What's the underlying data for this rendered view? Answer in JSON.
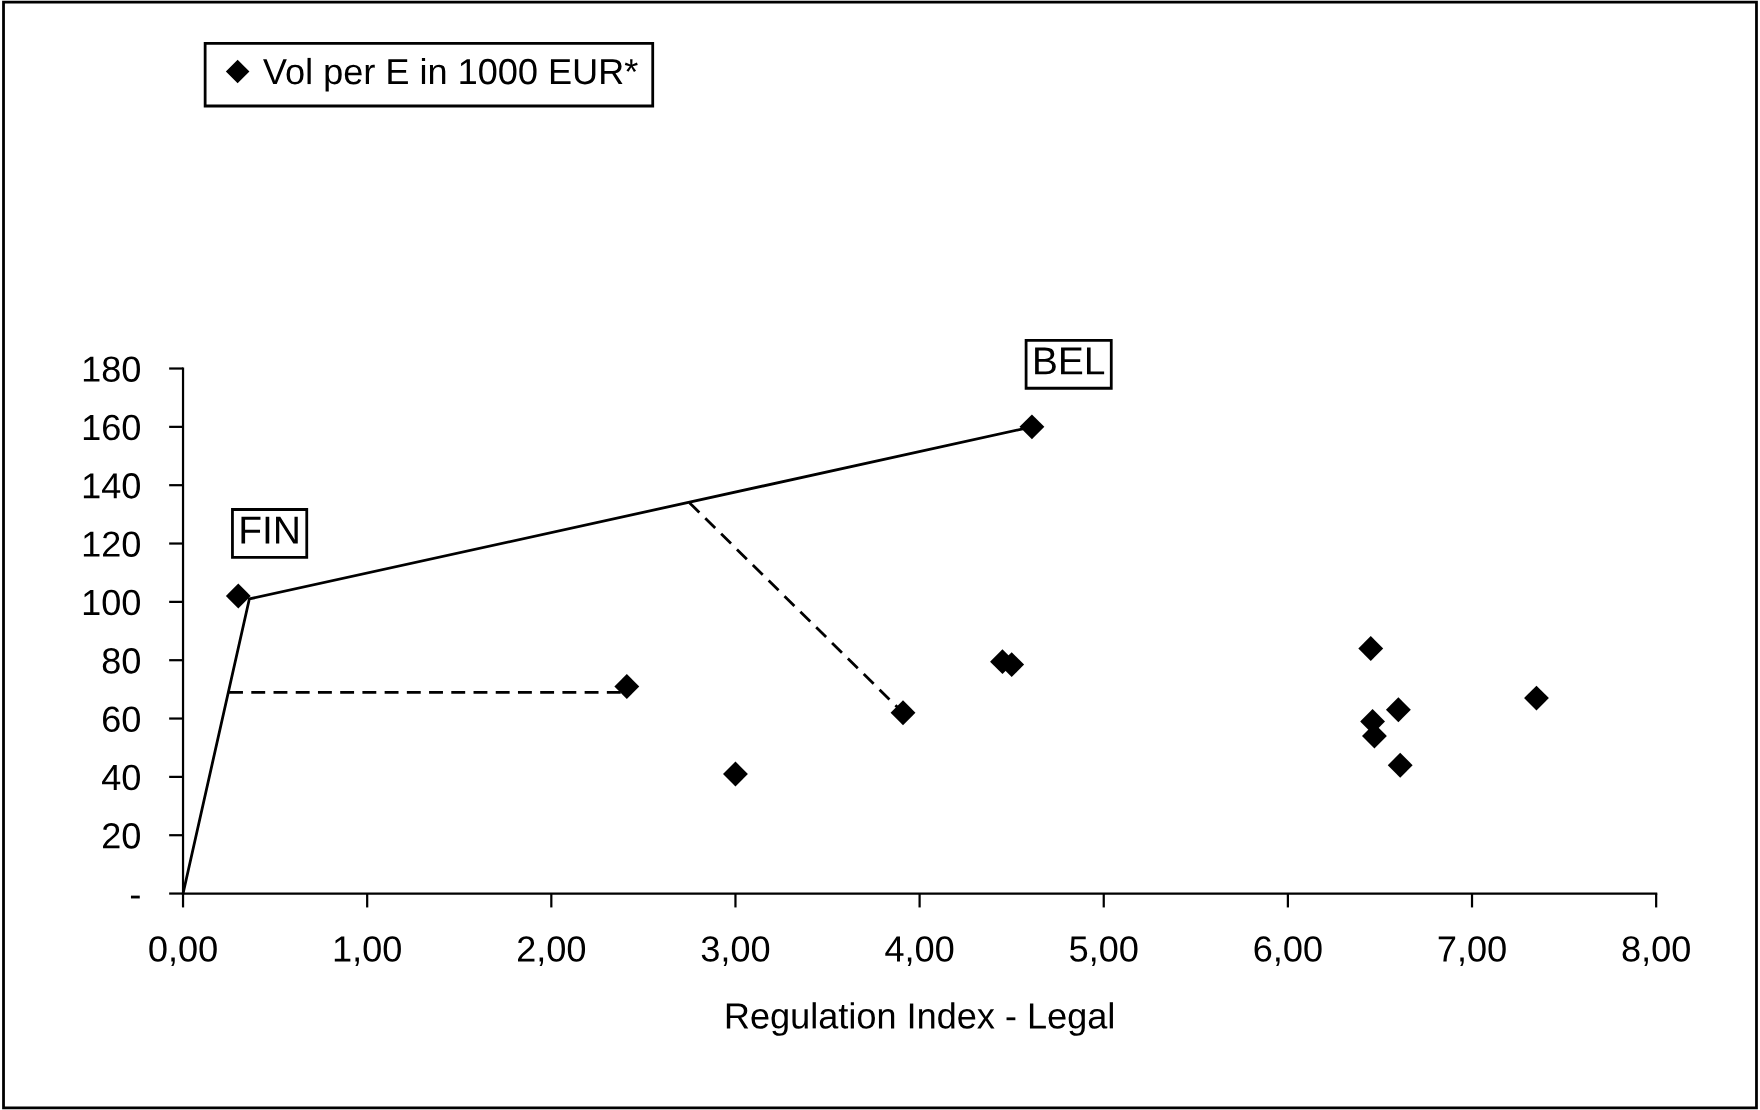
{
  "chart_data": {
    "type": "scatter",
    "xlabel": "Regulation Index - Legal",
    "xlim": [
      0,
      8
    ],
    "xticks": [
      {
        "value": 0,
        "label": "0,00"
      },
      {
        "value": 1,
        "label": "1,00"
      },
      {
        "value": 2,
        "label": "2,00"
      },
      {
        "value": 3,
        "label": "3,00"
      },
      {
        "value": 4,
        "label": "4,00"
      },
      {
        "value": 5,
        "label": "5,00"
      },
      {
        "value": 6,
        "label": "6,00"
      },
      {
        "value": 7,
        "label": "7,00"
      },
      {
        "value": 8,
        "label": "8,00"
      }
    ],
    "ylim": [
      0,
      180
    ],
    "yticks": [
      {
        "value": 0,
        "label": "-"
      },
      20,
      40,
      60,
      80,
      100,
      120,
      140,
      160,
      180
    ],
    "grid": false,
    "legend": "top left",
    "series": [
      {
        "name": "Vol per E in 1000 EUR*",
        "marker": "diamond",
        "color": "#000000",
        "x": [
          0.3,
          2.41,
          3.0,
          3.91,
          4.45,
          4.5,
          4.61,
          6.45,
          6.46,
          6.47,
          6.6,
          6.61,
          7.35
        ],
        "values": [
          102,
          71,
          41,
          62,
          79.5,
          78.5,
          160,
          84,
          59,
          54,
          63,
          44,
          67
        ]
      },
      {
        "type": "line",
        "marker": "none",
        "color": "#000000",
        "line_style": "solid",
        "x": [
          0,
          0.36,
          4.61
        ],
        "values": [
          0,
          101,
          160
        ]
      },
      {
        "type": "line",
        "marker": "none",
        "color": "#000000",
        "line_style": "dashed",
        "x": [
          0.25,
          2.4
        ],
        "values": [
          69,
          69
        ]
      },
      {
        "type": "line",
        "marker": "none",
        "color": "#000000",
        "line_style": "dashed",
        "x": [
          2.75,
          3.91
        ],
        "values": [
          134,
          62
        ]
      }
    ],
    "annotations": [
      {
        "text": "FIN",
        "x": 0.3,
        "y": 102
      },
      {
        "text": "BEL",
        "x": 4.61,
        "y": 160
      }
    ]
  }
}
